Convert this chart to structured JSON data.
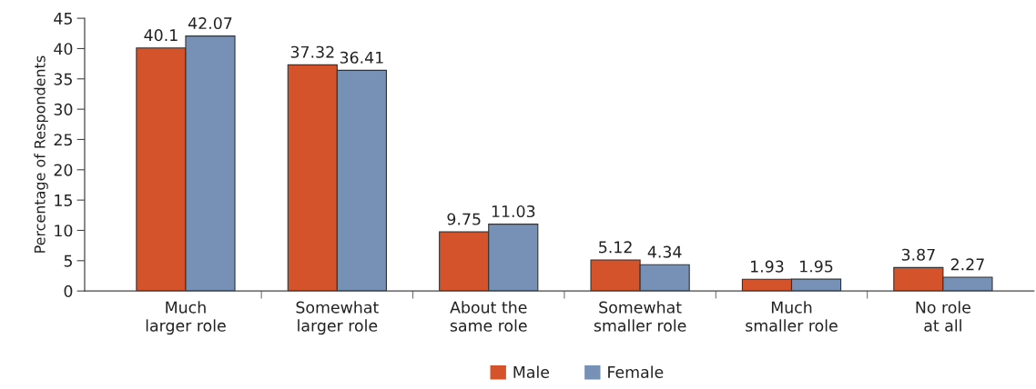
{
  "chart_data": {
    "type": "bar",
    "ylabel": "Percentage of Respondents",
    "categories": [
      "Much\nlarger role",
      "Somewhat\nlarger role",
      "About the\nsame role",
      "Somewhat\nsmaller role",
      "Much\nsmaller role",
      "No role\nat all"
    ],
    "series": [
      {
        "name": "Male",
        "color": "#d5532a",
        "values": [
          40.1,
          37.32,
          9.75,
          5.12,
          1.93,
          3.87
        ]
      },
      {
        "name": "Female",
        "color": "#7790b5",
        "values": [
          42.07,
          36.41,
          11.03,
          4.34,
          1.95,
          2.27
        ]
      }
    ],
    "ylim": [
      0,
      45
    ],
    "yticks": [
      0,
      5,
      10,
      15,
      20,
      25,
      30,
      35,
      40,
      45
    ],
    "data_labels": true,
    "grid": false,
    "legend": "bottom"
  }
}
